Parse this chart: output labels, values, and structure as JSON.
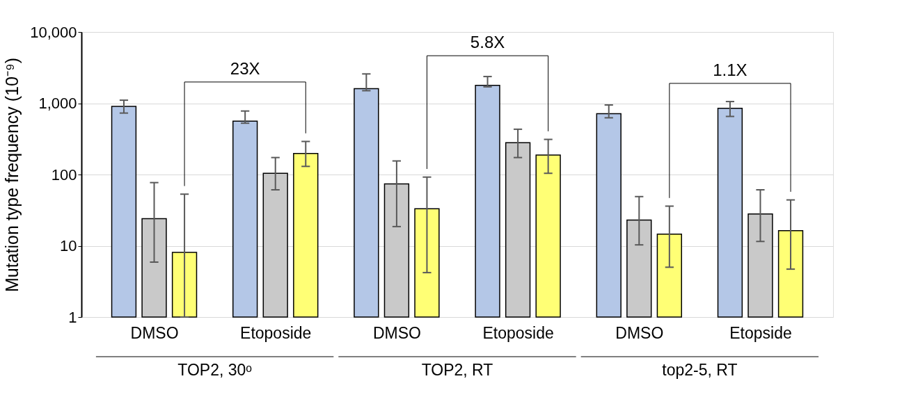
{
  "chart_data": {
    "type": "bar",
    "categories": [
      "DMSO",
      "Etoposide",
      "DMSO",
      "Etoposide",
      "DMSO",
      "Etopside"
    ],
    "ylabel": "Mutation type frequency  (10⁻⁹)",
    "log": true,
    "ylim": [
      1,
      10000
    ],
    "yticks": [
      1,
      10,
      100,
      {
        "value": 1000,
        "label": "1,000"
      },
      {
        "value": 10000,
        "label": "10,000"
      }
    ],
    "grid": "y",
    "series": [
      {
        "color": "#b4c7e7",
        "values": [
          906,
          561,
          1600,
          1783,
          713,
          849
        ],
        "errors": [
          [
            728,
            1104
          ],
          [
            525,
            778
          ],
          [
            1500,
            2580
          ],
          [
            1700,
            2370
          ],
          [
            625,
            946
          ],
          [
            653,
            1056
          ]
        ]
      },
      {
        "color": "#c9c9c9",
        "values": [
          24,
          104,
          74,
          279,
          23,
          28
        ],
        "errors": [
          [
            5.9,
            77
          ],
          [
            61,
            173
          ],
          [
            18.6,
            155
          ],
          [
            173,
            432
          ],
          [
            10.3,
            49
          ],
          [
            11.5,
            61
          ]
        ]
      },
      {
        "color": "#ffff75",
        "values": [
          8.1,
          197,
          33,
          188,
          14.6,
          16.3
        ],
        "errors": [
          [
            1,
            53
          ],
          [
            130,
            291
          ],
          [
            4.2,
            92
          ],
          [
            104,
            311
          ],
          [
            5.0,
            36
          ],
          [
            4.7,
            44
          ]
        ]
      }
    ],
    "annotations": [
      "23X",
      "5.8X",
      "1.1X",
      "TOP2, 30ᵒ",
      "TOP2, RT",
      "top2-5, RT"
    ]
  }
}
